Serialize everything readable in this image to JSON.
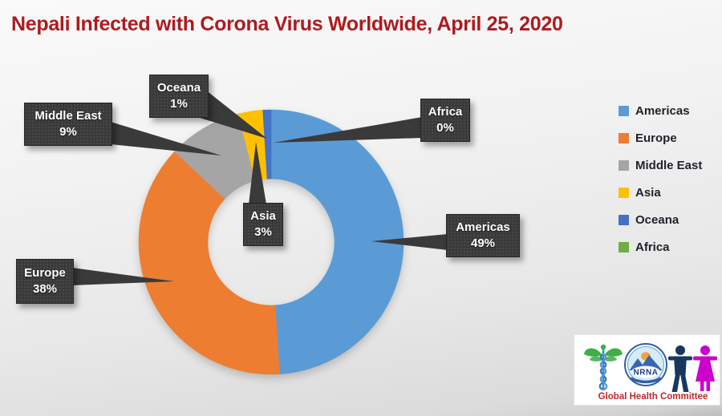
{
  "title": {
    "text": "Nepali Infected with Corona Virus Worldwide, April 25, 2020",
    "color": "#ae1a1e"
  },
  "chart_data": {
    "type": "pie",
    "variant": "donut",
    "title": "Nepali Infected with Corona Virus Worldwide, April 25, 2020",
    "unit": "percent",
    "categories": [
      "Americas",
      "Europe",
      "Middle East",
      "Asia",
      "Oceana",
      "Africa"
    ],
    "values": [
      49,
      38,
      9,
      3,
      1,
      0
    ],
    "colors": [
      "#5B9BD5",
      "#ED7D31",
      "#A5A5A5",
      "#FFC000",
      "#4472C4",
      "#70AD47"
    ],
    "start_angle_deg": 0,
    "direction": "clockwise",
    "donut_hole_ratio": 0.48,
    "legend_position": "right",
    "callouts": [
      {
        "label": "Oceana",
        "value": "1%"
      },
      {
        "label": "Middle East",
        "value": "9%"
      },
      {
        "label": "Africa",
        "value": "0%"
      },
      {
        "label": "Americas",
        "value": "49%"
      },
      {
        "label": "Asia",
        "value": "3%"
      },
      {
        "label": "Europe",
        "value": "38%"
      }
    ],
    "callout_style": {
      "background": "#3a3a3a",
      "text_color": "#ffffff"
    }
  },
  "legend": {
    "items": [
      {
        "label": "Americas",
        "color": "#5B9BD5"
      },
      {
        "label": "Europe",
        "color": "#ED7D31"
      },
      {
        "label": "Middle East",
        "color": "#A5A5A5"
      },
      {
        "label": "Asia",
        "color": "#FFC000"
      },
      {
        "label": "Oceana",
        "color": "#4472C4"
      },
      {
        "label": "Africa",
        "color": "#70AD47"
      }
    ]
  },
  "logo": {
    "org_abbr": "NRNA",
    "caption": "Global Health Committee",
    "caption_color": "#c0272d",
    "icons": [
      "caduceus-icon",
      "nrna-emblem",
      "male-figure-icon",
      "female-figure-icon"
    ]
  }
}
